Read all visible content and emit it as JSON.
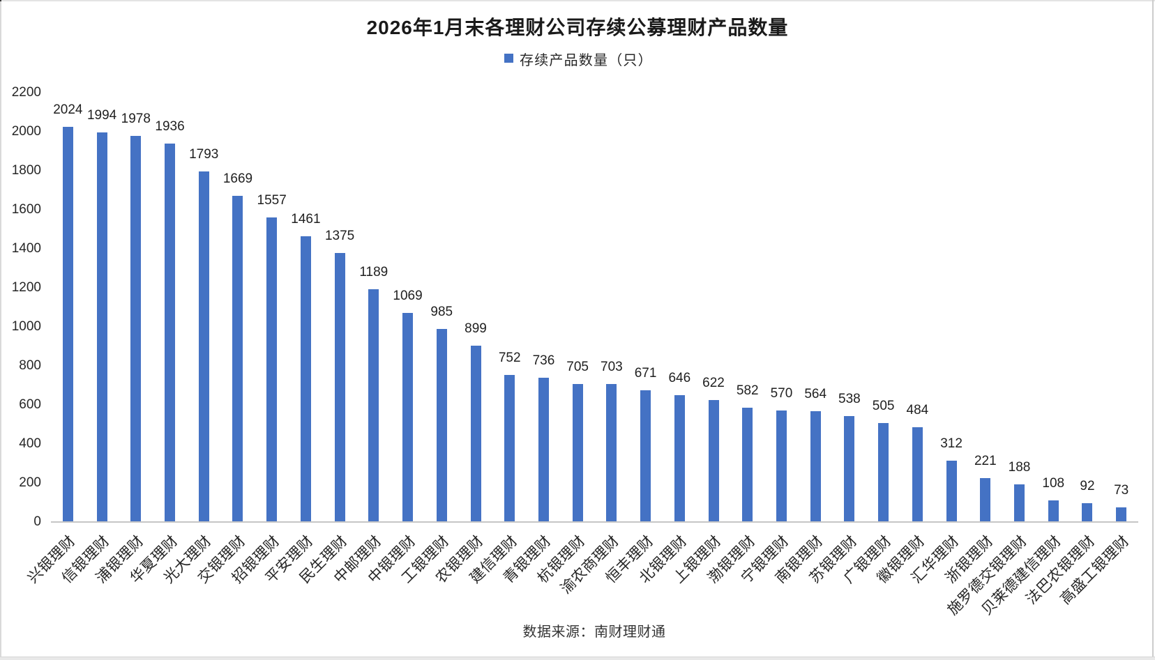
{
  "chart_data": {
    "type": "bar",
    "title": "2026年1月末各理财公司存续公募理财产品数量",
    "legend": [
      {
        "label": "存续产品数量（只）",
        "color": "#4472C4"
      }
    ],
    "source_note": "数据来源：南财理财通",
    "categories": [
      "兴银理财",
      "信银理财",
      "浦银理财",
      "华夏理财",
      "光大理财",
      "交银理财",
      "招银理财",
      "平安理财",
      "民生理财",
      "中邮理财",
      "中银理财",
      "工银理财",
      "农银理财",
      "建信理财",
      "青银理财",
      "杭银理财",
      "渝农商理财",
      "恒丰理财",
      "北银理财",
      "上银理财",
      "渤银理财",
      "宁银理财",
      "南银理财",
      "苏银理财",
      "广银理财",
      "徽银理财",
      "汇华理财",
      "浙银理财",
      "施罗德交银理财",
      "贝莱德建信理财",
      "法巴农银理财",
      "高盛工银理财"
    ],
    "values": [
      2024,
      1994,
      1978,
      1936,
      1793,
      1669,
      1557,
      1461,
      1375,
      1189,
      1069,
      985,
      899,
      752,
      736,
      705,
      703,
      671,
      646,
      622,
      582,
      570,
      564,
      538,
      505,
      484,
      312,
      221,
      188,
      108,
      92,
      73
    ],
    "yticks": [
      0,
      200,
      400,
      600,
      800,
      1000,
      1200,
      1400,
      1600,
      1800,
      2000,
      2200
    ],
    "ylim": [
      0,
      2200
    ],
    "xlabel": "",
    "ylabel": "",
    "grid": "off",
    "legend_position": "top",
    "bar_color": "#4472C4",
    "axis_line_color": "#C6C6C6"
  }
}
